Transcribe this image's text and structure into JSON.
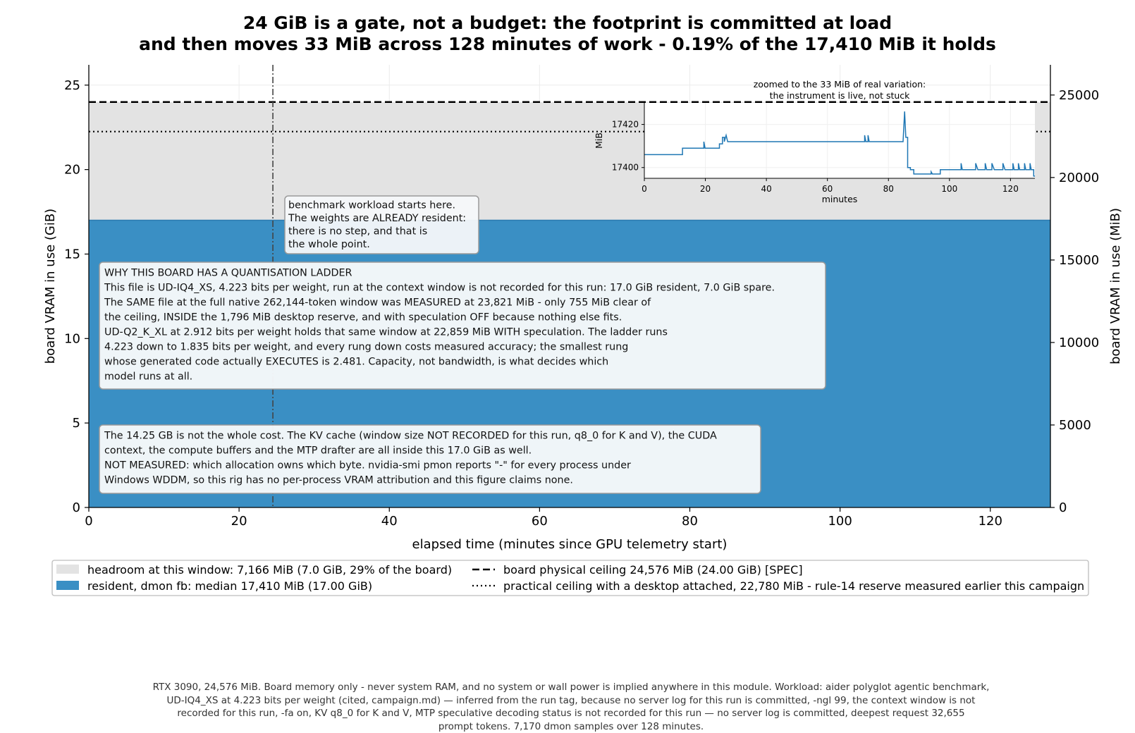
{
  "title_lines": [
    "24 GiB is a gate, not a budget: the footprint is committed at load",
    "and then moves 33 MiB across 128 minutes of work - 0.19% of the 17,410 MiB it holds"
  ],
  "footer_lines": [
    "RTX 3090, 24,576 MiB. Board memory only - never system RAM, and no system or wall power is implied anywhere in this module. Workload: aider polyglot agentic benchmark,",
    "UD-IQ4_XS at 4.223 bits per weight (cited, campaign.md) — inferred from the run tag, because no server log for this run is committed, -ngl 99, the context window is not",
    "recorded for this run, -fa on, KV q8_0 for K and V, MTP speculative decoding status is not recorded for this run — no server log is committed, deepest request 32,655",
    "prompt tokens. 7,170 dmon samples over 128 minutes."
  ],
  "chart_data": [
    {
      "type": "area",
      "xlabel": "elapsed time (minutes since GPU telemetry start)",
      "ylabel": "board VRAM in use (GiB)",
      "ylabel_right": "board VRAM in use (MiB)",
      "xlim": [
        0,
        128
      ],
      "ylim": [
        0,
        26.2
      ],
      "ylim_right_mib": [
        0,
        26829
      ],
      "xticks": [
        "0",
        "20",
        "40",
        "60",
        "80",
        "100",
        "120"
      ],
      "yticks": [
        "0",
        "5",
        "10",
        "15",
        "20",
        "25"
      ],
      "yticks_right": [
        "0",
        "5000",
        "10000",
        "15000",
        "20000",
        "25000"
      ],
      "grid": true,
      "legend_placement": "bottom",
      "series": [
        {
          "name": "resident, dmon fb: median 17,410 MiB (17.00 GiB)",
          "kind": "area",
          "value_gib": 17.0,
          "color": "#3a8fc4"
        },
        {
          "name": "headroom at this window: 7,166 MiB (7.0 GiB, 29% of the board)",
          "kind": "area",
          "from_gib": 17.0,
          "to_gib": 24.0,
          "color": "#e3e3e3"
        },
        {
          "name": "board physical ceiling 24,576 MiB (24.00 GiB) [SPEC]",
          "kind": "hline",
          "value_gib": 24.0,
          "style": "dashed",
          "color": "#000000"
        },
        {
          "name": "practical ceiling with a desktop attached, 22,780 MiB - rule-14 reserve measured earlier this campaign",
          "kind": "hline",
          "value_gib": 22.25,
          "style": "dotted",
          "color": "#000000"
        }
      ],
      "vline": {
        "x": 24.5,
        "style": "dashdot",
        "color": "#444444"
      },
      "legend": [
        {
          "label": "headroom at this window: 7,166 MiB (7.0 GiB, 29% of the board)",
          "kind": "patch",
          "color": "#e3e3e3"
        },
        {
          "label": "resident, dmon fb: median 17,410 MiB (17.00 GiB)",
          "kind": "patch",
          "color": "#3a8fc4"
        },
        {
          "label": "board physical ceiling 24,576 MiB (24.00 GiB) [SPEC]",
          "kind": "dashed"
        },
        {
          "label": "practical ceiling with a desktop attached, 22,780 MiB - rule-14 reserve measured earlier this campaign",
          "kind": "dotted"
        }
      ],
      "annotations": [
        {
          "id": "workload",
          "lines": [
            "benchmark workload starts here.",
            "The weights are ALREADY resident:",
            "there is no step, and that is",
            "the whole point."
          ]
        },
        {
          "id": "ladder",
          "lines": [
            "WHY THIS BOARD HAS A QUANTISATION LADDER",
            "This file is UD-IQ4_XS, 4.223 bits per weight, run at the context window is not recorded for this run: 17.0 GiB resident, 7.0 GiB spare.",
            "The SAME file at the full native 262,144-token window was MEASURED at 23,821 MiB - only 755 MiB clear of",
            "the ceiling, INSIDE the 1,796 MiB desktop reserve, and with speculation OFF because nothing else fits.",
            "UD-Q2_K_XL at 2.912 bits per weight holds that same window at 22,859 MiB WITH speculation. The ladder runs",
            "4.223 down to 1.835 bits per weight, and every rung down costs measured accuracy; the smallest rung",
            "whose generated code actually EXECUTES is 2.481. Capacity, not bandwidth, is what decides which",
            "model runs at all."
          ]
        },
        {
          "id": "cost",
          "lines": [
            "The 14.25 GB is not the whole cost. The KV cache (window size NOT RECORDED for this run, q8_0 for K and V), the CUDA",
            "context, the compute buffers and the MTP drafter are all inside this 17.0 GiB as well.",
            "NOT MEASURED: which allocation owns which byte. nvidia-smi pmon reports \"-\" for every process under",
            "Windows WDDM, so this rig has no per-process VRAM attribution and this figure claims none."
          ]
        }
      ]
    },
    {
      "type": "line",
      "title_lines": [
        "zoomed to the 33 MiB of real variation:",
        "the instrument is live, not stuck"
      ],
      "xlabel": "minutes",
      "ylabel": "MiB",
      "xlim": [
        0,
        128
      ],
      "ylim": [
        17395,
        17430
      ],
      "xticks": [
        "0",
        "20",
        "40",
        "60",
        "80",
        "100",
        "120"
      ],
      "yticks": [
        "17400",
        "17420"
      ],
      "color": "#1f77b4",
      "points": [
        [
          0,
          17406
        ],
        [
          12.5,
          17406
        ],
        [
          12.5,
          17409
        ],
        [
          19.5,
          17409
        ],
        [
          19.5,
          17412
        ],
        [
          19.9,
          17409
        ],
        [
          24.6,
          17409
        ],
        [
          24.6,
          17411
        ],
        [
          25.6,
          17411
        ],
        [
          25.6,
          17414
        ],
        [
          26.2,
          17414
        ],
        [
          26.2,
          17412
        ],
        [
          26.8,
          17415
        ],
        [
          27.3,
          17412
        ],
        [
          72.2,
          17412
        ],
        [
          72.2,
          17415
        ],
        [
          72.6,
          17412
        ],
        [
          73.3,
          17412
        ],
        [
          73.3,
          17415
        ],
        [
          73.7,
          17412
        ],
        [
          84.8,
          17412
        ],
        [
          85.3,
          17426
        ],
        [
          85.7,
          17414
        ],
        [
          86.3,
          17414
        ],
        [
          86.3,
          17400
        ],
        [
          87.2,
          17400
        ],
        [
          87.2,
          17399
        ],
        [
          88.3,
          17399
        ],
        [
          88.3,
          17397
        ],
        [
          94.0,
          17397
        ],
        [
          94.0,
          17398
        ],
        [
          94.4,
          17397
        ],
        [
          97.0,
          17397
        ],
        [
          97.0,
          17399
        ],
        [
          103.8,
          17399
        ],
        [
          103.8,
          17402
        ],
        [
          104.2,
          17399
        ],
        [
          108.6,
          17399
        ],
        [
          108.6,
          17402
        ],
        [
          109.3,
          17399
        ],
        [
          111.7,
          17399
        ],
        [
          111.7,
          17402
        ],
        [
          112.2,
          17399
        ],
        [
          113.9,
          17399
        ],
        [
          113.9,
          17402
        ],
        [
          114.7,
          17399
        ],
        [
          117.5,
          17399
        ],
        [
          117.5,
          17402
        ],
        [
          118.2,
          17399
        ],
        [
          120.8,
          17399
        ],
        [
          120.8,
          17402
        ],
        [
          121.2,
          17399
        ],
        [
          122.6,
          17399
        ],
        [
          122.6,
          17402
        ],
        [
          123.0,
          17399
        ],
        [
          124.6,
          17399
        ],
        [
          124.6,
          17402
        ],
        [
          125.0,
          17399
        ],
        [
          126.4,
          17399
        ],
        [
          126.4,
          17402
        ],
        [
          126.8,
          17399
        ],
        [
          127.6,
          17399
        ],
        [
          127.6,
          17396
        ],
        [
          128,
          17396
        ]
      ]
    }
  ]
}
